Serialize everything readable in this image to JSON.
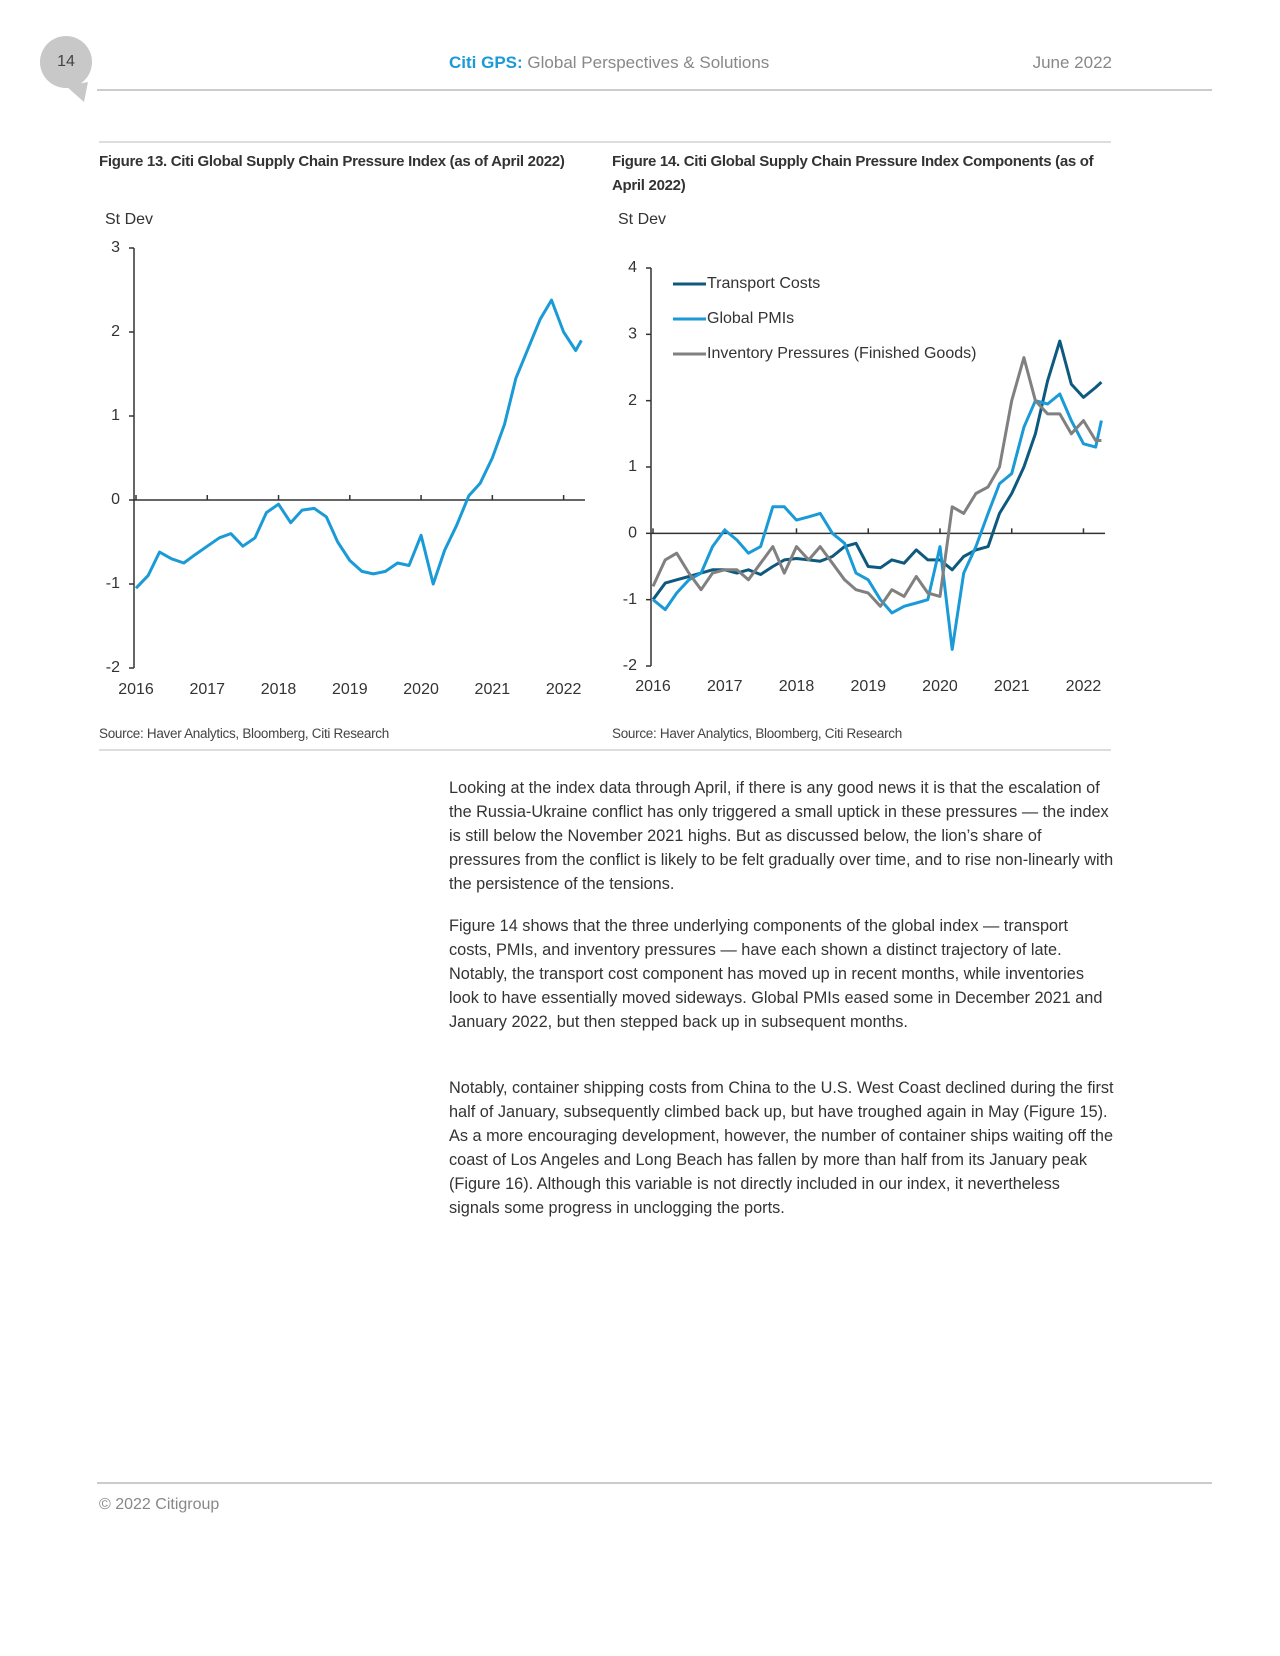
{
  "header": {
    "page": "14",
    "brand": "Citi GPS:",
    "subtitle": "Global Perspectives & Solutions",
    "date": "June 2022"
  },
  "chart_data": [
    {
      "type": "line",
      "title": "Figure 13. Citi Global Supply Chain Pressure Index (as of April 2022)",
      "ylabel": "St Dev",
      "source": "Source: Haver Analytics, Bloomberg, Citi Research",
      "x": [
        2016,
        2016.17,
        2016.33,
        2016.5,
        2016.67,
        2016.83,
        2017,
        2017.17,
        2017.33,
        2017.5,
        2017.67,
        2017.83,
        2018,
        2018.17,
        2018.33,
        2018.5,
        2018.67,
        2018.83,
        2019,
        2019.17,
        2019.33,
        2019.5,
        2019.67,
        2019.83,
        2020,
        2020.17,
        2020.33,
        2020.5,
        2020.67,
        2020.83,
        2021,
        2021.17,
        2021.33,
        2021.5,
        2021.67,
        2021.83,
        2022,
        2022.17,
        2022.25
      ],
      "series": [
        {
          "name": null,
          "color": "#1a9ad6",
          "values": [
            -1.05,
            -0.9,
            -0.62,
            -0.7,
            -0.75,
            -0.65,
            -0.55,
            -0.45,
            -0.4,
            -0.55,
            -0.45,
            -0.15,
            -0.05,
            -0.27,
            -0.12,
            -0.1,
            -0.2,
            -0.5,
            -0.72,
            -0.85,
            -0.88,
            -0.85,
            -0.75,
            -0.78,
            -0.42,
            -1.0,
            -0.6,
            -0.3,
            0.05,
            0.2,
            0.5,
            0.9,
            1.45,
            1.8,
            2.15,
            2.38,
            2.0,
            1.78,
            1.9
          ]
        }
      ],
      "xlim": [
        2016,
        2022.3
      ],
      "xticks": [
        2016,
        2017,
        2018,
        2019,
        2020,
        2021,
        2022
      ],
      "ylim": [
        -2,
        3
      ],
      "yticks": [
        -2,
        -1,
        0,
        1,
        2,
        3
      ]
    },
    {
      "type": "line",
      "title": "Figure 14. Citi Global Supply Chain Pressure Index Components (as of April 2022)",
      "ylabel": "St Dev",
      "source": "Source: Haver Analytics, Bloomberg, Citi Research",
      "legend": "top-left",
      "x": [
        2016,
        2016.17,
        2016.33,
        2016.5,
        2016.67,
        2016.83,
        2017,
        2017.17,
        2017.33,
        2017.5,
        2017.67,
        2017.83,
        2018,
        2018.17,
        2018.33,
        2018.5,
        2018.67,
        2018.83,
        2019,
        2019.17,
        2019.33,
        2019.5,
        2019.67,
        2019.83,
        2020,
        2020.17,
        2020.33,
        2020.5,
        2020.67,
        2020.83,
        2021,
        2021.17,
        2021.33,
        2021.5,
        2021.67,
        2021.83,
        2022,
        2022.17,
        2022.25
      ],
      "series": [
        {
          "name": "Transport Costs",
          "color": "#0e5a7e",
          "values": [
            -1.0,
            -0.75,
            -0.7,
            -0.65,
            -0.6,
            -0.55,
            -0.55,
            -0.6,
            -0.55,
            -0.62,
            -0.5,
            -0.4,
            -0.38,
            -0.4,
            -0.42,
            -0.35,
            -0.2,
            -0.15,
            -0.5,
            -0.52,
            -0.4,
            -0.45,
            -0.25,
            -0.4,
            -0.4,
            -0.55,
            -0.35,
            -0.25,
            -0.2,
            0.3,
            0.6,
            1.0,
            1.5,
            2.3,
            2.9,
            2.25,
            2.05,
            2.2,
            2.28
          ]
        },
        {
          "name": "Global PMIs",
          "color": "#1a9ad6",
          "values": [
            -1.0,
            -1.15,
            -0.9,
            -0.7,
            -0.6,
            -0.2,
            0.05,
            -0.1,
            -0.3,
            -0.2,
            0.4,
            0.4,
            0.2,
            0.25,
            0.3,
            0.0,
            -0.15,
            -0.6,
            -0.7,
            -1.0,
            -1.2,
            -1.1,
            -1.05,
            -1.0,
            -0.2,
            -1.75,
            -0.6,
            -0.2,
            0.3,
            0.75,
            0.9,
            1.6,
            2.0,
            1.95,
            2.1,
            1.7,
            1.35,
            1.3,
            1.7
          ]
        },
        {
          "name": "Inventory Pressures (Finished Goods)",
          "color": "#808080",
          "values": [
            -0.8,
            -0.4,
            -0.3,
            -0.6,
            -0.85,
            -0.6,
            -0.55,
            -0.55,
            -0.7,
            -0.45,
            -0.2,
            -0.6,
            -0.2,
            -0.4,
            -0.2,
            -0.45,
            -0.7,
            -0.85,
            -0.9,
            -1.1,
            -0.85,
            -0.95,
            -0.65,
            -0.9,
            -0.95,
            0.4,
            0.3,
            0.6,
            0.7,
            1.0,
            2.0,
            2.65,
            2.0,
            1.8,
            1.8,
            1.5,
            1.7,
            1.4,
            1.4
          ]
        }
      ],
      "xlim": [
        2016,
        2022.3
      ],
      "xticks": [
        2016,
        2017,
        2018,
        2019,
        2020,
        2021,
        2022
      ],
      "ylim": [
        -2,
        4
      ],
      "yticks": [
        -2,
        -1,
        0,
        1,
        2,
        3,
        4
      ]
    }
  ],
  "body": [
    "Looking at the index data through April, if there is any good news it is that the escalation of the Russia-Ukraine conflict has only triggered a small uptick in these pressures — the index is still below the November 2021 highs. But as discussed below, the lion’s share of pressures from the conflict is likely to be felt gradually over time, and to rise non-linearly with the persistence of the tensions.",
    "Figure 14 shows that the three underlying components of the global index — transport costs, PMIs, and inventory pressures — have each shown a distinct trajectory of late. Notably, the transport cost component has moved up in recent months, while inventories look to have essentially moved sideways. Global PMIs eased some in December 2021 and January 2022, but then stepped back up in subsequent months.",
    "Notably, container shipping costs from China to the U.S. West Coast declined during the first half of January, subsequently climbed back up, but have troughed again in May (Figure 15). As a more encouraging development, however, the number of container ships waiting off the coast of Los Angeles and Long Beach has fallen by more than half from its January peak (Figure 16). Although this variable is not directly included in our index, it nevertheless signals some progress in unclogging the ports."
  ],
  "footer": "© 2022 Citigroup"
}
